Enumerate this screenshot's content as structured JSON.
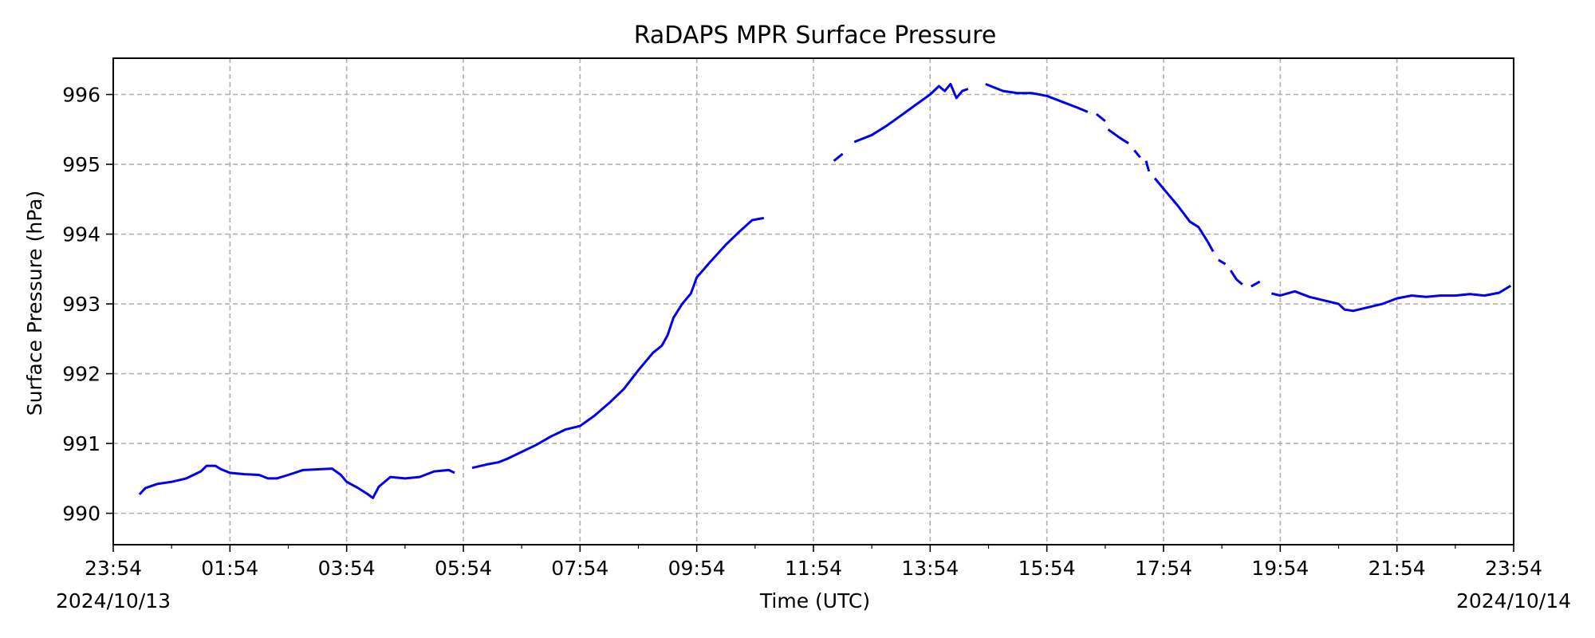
{
  "chart_data": {
    "type": "line",
    "title": "RaDAPS MPR Surface Pressure",
    "xlabel": "Time (UTC)",
    "ylabel": "Surface Pressure (hPa)",
    "grid": true,
    "xlim": [
      0,
      24
    ],
    "ylim": [
      989.55,
      996.52
    ],
    "y_ticks": [
      990,
      991,
      992,
      993,
      994,
      995,
      996
    ],
    "x_ticks": [
      {
        "value": 0,
        "label": "23:54"
      },
      {
        "value": 2,
        "label": "01:54"
      },
      {
        "value": 4,
        "label": "03:54"
      },
      {
        "value": 6,
        "label": "05:54"
      },
      {
        "value": 8,
        "label": "07:54"
      },
      {
        "value": 10,
        "label": "09:54"
      },
      {
        "value": 12,
        "label": "11:54"
      },
      {
        "value": 14,
        "label": "13:54"
      },
      {
        "value": 16,
        "label": "15:54"
      },
      {
        "value": 18,
        "label": "17:54"
      },
      {
        "value": 20,
        "label": "19:54"
      },
      {
        "value": 22,
        "label": "21:54"
      },
      {
        "value": 24,
        "label": "23:54"
      }
    ],
    "x_minor_step": 1,
    "date_labels": {
      "start": "2024/10/13",
      "end": "2024/10/14"
    },
    "series": [
      {
        "color": "#0000ee",
        "segments": [
          [
            [
              0.45,
              990.27
            ],
            [
              0.55,
              990.36
            ],
            [
              0.75,
              990.42
            ],
            [
              1.0,
              990.45
            ],
            [
              1.25,
              990.5
            ],
            [
              1.5,
              990.6
            ],
            [
              1.6,
              990.68
            ],
            [
              1.75,
              990.68
            ],
            [
              1.85,
              990.63
            ],
            [
              2.0,
              990.58
            ],
            [
              2.25,
              990.56
            ],
            [
              2.5,
              990.55
            ],
            [
              2.65,
              990.5
            ],
            [
              2.8,
              990.5
            ],
            [
              3.0,
              990.55
            ],
            [
              3.25,
              990.62
            ],
            [
              3.5,
              990.63
            ],
            [
              3.75,
              990.64
            ],
            [
              3.9,
              990.55
            ],
            [
              4.0,
              990.45
            ],
            [
              4.2,
              990.36
            ],
            [
              4.35,
              990.28
            ],
            [
              4.45,
              990.22
            ],
            [
              4.55,
              990.38
            ],
            [
              4.75,
              990.52
            ],
            [
              5.0,
              990.5
            ],
            [
              5.25,
              990.52
            ],
            [
              5.5,
              990.6
            ],
            [
              5.75,
              990.62
            ],
            [
              5.85,
              990.58
            ]
          ],
          [
            [
              6.15,
              990.65
            ],
            [
              6.4,
              990.7
            ],
            [
              6.6,
              990.73
            ],
            [
              6.75,
              990.78
            ],
            [
              7.0,
              990.88
            ],
            [
              7.25,
              990.98
            ],
            [
              7.5,
              991.1
            ],
            [
              7.75,
              991.2
            ],
            [
              8.0,
              991.25
            ],
            [
              8.25,
              991.4
            ],
            [
              8.5,
              991.58
            ],
            [
              8.75,
              991.78
            ],
            [
              9.0,
              992.05
            ],
            [
              9.25,
              992.3
            ],
            [
              9.4,
              992.4
            ],
            [
              9.5,
              992.55
            ],
            [
              9.6,
              992.8
            ],
            [
              9.75,
              993.0
            ],
            [
              9.9,
              993.15
            ],
            [
              10.0,
              993.38
            ],
            [
              10.25,
              993.62
            ],
            [
              10.5,
              993.85
            ],
            [
              10.75,
              994.05
            ],
            [
              10.95,
              994.2
            ],
            [
              11.15,
              994.23
            ]
          ],
          [
            [
              12.35,
              995.05
            ],
            [
              12.5,
              995.15
            ]
          ],
          [
            [
              12.7,
              995.32
            ],
            [
              13.0,
              995.42
            ],
            [
              13.25,
              995.55
            ],
            [
              13.5,
              995.7
            ],
            [
              13.75,
              995.85
            ],
            [
              14.0,
              996.0
            ],
            [
              14.15,
              996.12
            ],
            [
              14.25,
              996.05
            ],
            [
              14.35,
              996.15
            ],
            [
              14.45,
              995.95
            ],
            [
              14.55,
              996.05
            ],
            [
              14.65,
              996.08
            ]
          ],
          [
            [
              14.95,
              996.15
            ],
            [
              15.25,
              996.05
            ],
            [
              15.5,
              996.02
            ],
            [
              15.75,
              996.02
            ],
            [
              16.0,
              995.98
            ],
            [
              16.25,
              995.9
            ],
            [
              16.5,
              995.82
            ],
            [
              16.7,
              995.75
            ]
          ],
          [
            [
              16.85,
              995.72
            ],
            [
              17.0,
              995.62
            ]
          ],
          [
            [
              17.05,
              995.5
            ],
            [
              17.25,
              995.38
            ],
            [
              17.4,
              995.3
            ]
          ],
          [
            [
              17.5,
              995.2
            ],
            [
              17.6,
              995.1
            ]
          ],
          [
            [
              17.7,
              995.05
            ],
            [
              17.75,
              994.9
            ]
          ],
          [
            [
              17.85,
              994.8
            ],
            [
              18.0,
              994.65
            ],
            [
              18.25,
              994.4
            ],
            [
              18.45,
              994.18
            ],
            [
              18.6,
              994.1
            ],
            [
              18.75,
              993.9
            ],
            [
              18.85,
              993.75
            ]
          ],
          [
            [
              19.0,
              993.6
            ]
          ],
          [
            [
              19.15,
              993.48
            ],
            [
              19.25,
              993.35
            ],
            [
              19.35,
              993.28
            ]
          ],
          [
            [
              19.5,
              993.25
            ],
            [
              19.65,
              993.32
            ]
          ],
          [
            [
              19.85,
              993.15
            ],
            [
              20.0,
              993.12
            ],
            [
              20.25,
              993.18
            ],
            [
              20.5,
              993.1
            ],
            [
              20.75,
              993.05
            ],
            [
              21.0,
              993.0
            ],
            [
              21.1,
              992.92
            ],
            [
              21.25,
              992.9
            ],
            [
              21.5,
              992.95
            ],
            [
              21.75,
              993.0
            ],
            [
              22.0,
              993.08
            ],
            [
              22.25,
              993.12
            ],
            [
              22.5,
              993.1
            ],
            [
              22.75,
              993.12
            ],
            [
              23.0,
              993.12
            ],
            [
              23.25,
              993.14
            ],
            [
              23.5,
              993.12
            ],
            [
              23.75,
              993.16
            ],
            [
              23.95,
              993.26
            ]
          ]
        ]
      }
    ]
  }
}
